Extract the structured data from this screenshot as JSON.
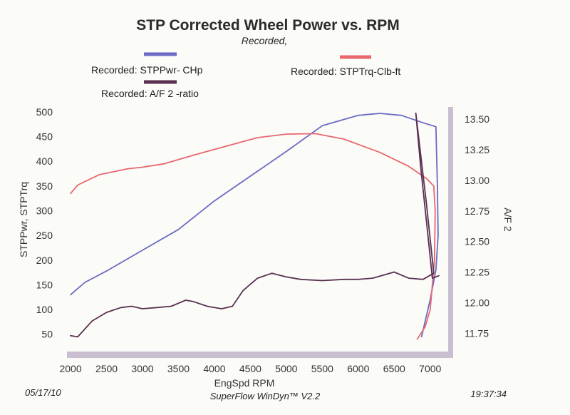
{
  "chart_data": {
    "type": "line",
    "title": "STP Corrected Wheel Power vs. RPM",
    "subtitle": "Recorded,",
    "xlabel": "EngSpd  RPM",
    "ylabel_left": "STPPwr, STPTrq",
    "ylabel_right": "A/F 2",
    "xlim": [
      1950,
      7250
    ],
    "ylim_left": [
      15,
      510
    ],
    "ylim_right": [
      11.6,
      13.6
    ],
    "x_ticks": [
      2000,
      2500,
      3000,
      3500,
      4000,
      4500,
      5000,
      5500,
      6000,
      6500,
      7000
    ],
    "y_ticks_left": [
      50,
      100,
      150,
      200,
      250,
      300,
      350,
      400,
      450,
      500
    ],
    "y_ticks_right": [
      "11.75",
      "12.00",
      "12.25",
      "12.50",
      "12.75",
      "13.00",
      "13.25",
      "13.50"
    ],
    "series": [
      {
        "name": "STPPwr",
        "legend": "Recorded: STPPwr- CHp",
        "axis": "left",
        "color": "#6a6ac4",
        "points": [
          [
            2000,
            130
          ],
          [
            2200,
            155
          ],
          [
            2500,
            178
          ],
          [
            3000,
            220
          ],
          [
            3500,
            262
          ],
          [
            4000,
            320
          ],
          [
            4500,
            370
          ],
          [
            5000,
            420
          ],
          [
            5500,
            472
          ],
          [
            6000,
            493
          ],
          [
            6300,
            497
          ],
          [
            6600,
            493
          ],
          [
            6900,
            478
          ],
          [
            7080,
            470
          ],
          [
            7100,
            350
          ],
          [
            7110,
            250
          ],
          [
            7080,
            180
          ],
          [
            7000,
            120
          ],
          [
            6880,
            45
          ]
        ]
      },
      {
        "name": "STPTrq",
        "legend": "Recorded: STPTrq-Clb-ft",
        "axis": "left",
        "color": "#e8686e",
        "points": [
          [
            2000,
            335
          ],
          [
            2100,
            352
          ],
          [
            2400,
            373
          ],
          [
            2800,
            385
          ],
          [
            3000,
            388
          ],
          [
            3300,
            395
          ],
          [
            3700,
            412
          ],
          [
            4200,
            432
          ],
          [
            4600,
            448
          ],
          [
            5000,
            455
          ],
          [
            5400,
            456
          ],
          [
            5800,
            445
          ],
          [
            6300,
            418
          ],
          [
            6700,
            390
          ],
          [
            6950,
            365
          ],
          [
            7050,
            350
          ],
          [
            7070,
            300
          ],
          [
            7060,
            200
          ],
          [
            7000,
            100
          ],
          [
            6930,
            65
          ],
          [
            6820,
            40
          ]
        ]
      },
      {
        "name": "A/F 2",
        "legend": "Recorded: A/F 2 -ratio",
        "axis": "right",
        "color": "#5a3050",
        "points": [
          [
            2000,
            11.73
          ],
          [
            2100,
            11.72
          ],
          [
            2300,
            11.85
          ],
          [
            2500,
            11.92
          ],
          [
            2700,
            11.96
          ],
          [
            2850,
            11.97
          ],
          [
            3000,
            11.95
          ],
          [
            3200,
            11.96
          ],
          [
            3400,
            11.97
          ],
          [
            3600,
            12.02
          ],
          [
            3700,
            12.01
          ],
          [
            3900,
            11.97
          ],
          [
            4100,
            11.95
          ],
          [
            4250,
            11.97
          ],
          [
            4400,
            12.1
          ],
          [
            4600,
            12.2
          ],
          [
            4800,
            12.24
          ],
          [
            5000,
            12.21
          ],
          [
            5200,
            12.19
          ],
          [
            5500,
            12.18
          ],
          [
            5800,
            12.19
          ],
          [
            6000,
            12.19
          ],
          [
            6200,
            12.2
          ],
          [
            6500,
            12.25
          ],
          [
            6700,
            12.2
          ],
          [
            6900,
            12.19
          ],
          [
            7050,
            12.24
          ],
          [
            6950,
            12.8
          ],
          [
            6850,
            13.3
          ],
          [
            6800,
            13.55
          ],
          [
            6870,
            13.1
          ],
          [
            6960,
            12.6
          ],
          [
            7030,
            12.2
          ],
          [
            7120,
            12.22
          ]
        ]
      }
    ]
  },
  "footer": {
    "date": "05/17/10",
    "software": "SuperFlow WinDyn™ V2.2",
    "time": "19:37:34"
  }
}
